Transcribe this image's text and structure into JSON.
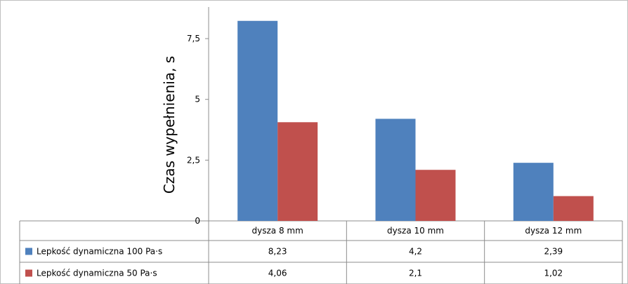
{
  "chart_data": {
    "type": "bar",
    "title": "",
    "xlabel": "",
    "ylabel": "Czas wypełnienia, s",
    "ylim": [
      0,
      8.8
    ],
    "yticks": [
      "0",
      "2,5",
      "5",
      "7,5"
    ],
    "ytick_values": [
      0,
      2.5,
      5,
      7.5
    ],
    "grid": false,
    "legend": "data-table",
    "categories": [
      "dysza 8 mm",
      "dysza 10 mm",
      "dysza 12 mm"
    ],
    "series": [
      {
        "name": "Lepkość dynamiczna 100 Pa·s",
        "color": "#4F81BD",
        "values": [
          8.23,
          4.2,
          2.39
        ],
        "labels": [
          "8,23",
          "4,2",
          "2,39"
        ]
      },
      {
        "name": "Lepkość dynamiczna 50 Pa·s",
        "color": "#C0504D",
        "values": [
          4.06,
          2.1,
          1.02
        ],
        "labels": [
          "4,06",
          "2,1",
          "1,02"
        ]
      }
    ]
  }
}
